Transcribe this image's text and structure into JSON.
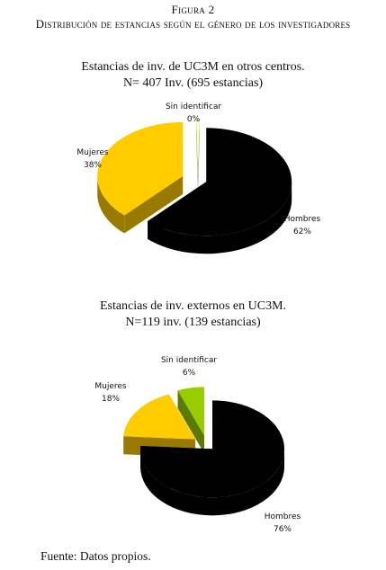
{
  "figure": {
    "label": "Figura 2",
    "title": "Distribución de estancias según el género de los investigadores"
  },
  "chart_data": [
    {
      "type": "pie",
      "title_line1": "Estancias de inv. de UC3M en otros centros.",
      "title_line2": "N= 407 Inv. (695 estancias)",
      "categories": [
        "Hombres",
        "Mujeres",
        "Sin identificar"
      ],
      "values": [
        62,
        38,
        0
      ],
      "value_labels": [
        "62%",
        "38%",
        "0%"
      ],
      "colors": {
        "Hombres": "#000000",
        "Mujeres": "#ffcc00",
        "Sin identificar": "#ffffcc"
      },
      "three_d": true,
      "exploded": true
    },
    {
      "type": "pie",
      "title_line1": "Estancias de inv. externos en UC3M.",
      "title_line2": "N=119 inv. (139 estancias)",
      "categories": [
        "Hombres",
        "Mujeres",
        "Sin identificar"
      ],
      "values": [
        76,
        18,
        6
      ],
      "value_labels": [
        "76%",
        "18%",
        "6%"
      ],
      "colors": {
        "Hombres": "#000000",
        "Mujeres": "#ffcc00",
        "Sin identificar": "#99cc00"
      },
      "three_d": true,
      "exploded": true
    }
  ],
  "source": "Fuente: Datos propios."
}
